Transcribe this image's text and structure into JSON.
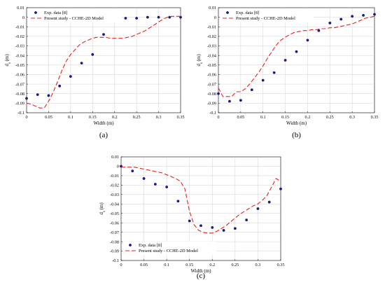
{
  "chart_data": [
    {
      "panel": "(a)",
      "type": "line+scatter",
      "xlabel": "Width (m)",
      "ylabel": "d_s (m)",
      "xlim": [
        0,
        0.35
      ],
      "ylim": [
        -0.1,
        0.01
      ],
      "xticks": [
        "0",
        "0.05",
        "0.1",
        "0.15",
        "0.2",
        "0.25",
        "0.3",
        "0.35"
      ],
      "yticks": [
        "0.01",
        "0",
        "-0.01",
        "-0.02",
        "-0.03",
        "-0.04",
        "-0.05",
        "-0.06",
        "-0.07",
        "-0.08",
        "-0.09",
        "-0.1"
      ],
      "grid": true,
      "legend_position": "top-left",
      "series": [
        {
          "name": "Exp. data [8]",
          "kind": "scatter",
          "x": [
            0,
            0.025,
            0.05,
            0.075,
            0.1,
            0.125,
            0.15,
            0.175,
            0.2,
            0.225,
            0.25,
            0.275,
            0.3,
            0.325,
            0.35
          ],
          "y": [
            -0.085,
            -0.081,
            -0.082,
            -0.072,
            -0.062,
            -0.048,
            -0.039,
            -0.018,
            -0.002,
            -0.001,
            -0.001,
            0.0,
            0.0,
            0.0,
            0.0
          ]
        },
        {
          "name": "Present study -  CCHE-2D Model",
          "kind": "line",
          "x": [
            0,
            0.01,
            0.02,
            0.03,
            0.04,
            0.05,
            0.06,
            0.07,
            0.08,
            0.09,
            0.1,
            0.11,
            0.12,
            0.13,
            0.14,
            0.15,
            0.16,
            0.17,
            0.18,
            0.19,
            0.2,
            0.21,
            0.22,
            0.23,
            0.24,
            0.25,
            0.26,
            0.27,
            0.28,
            0.29,
            0.3,
            0.31,
            0.32,
            0.33,
            0.34,
            0.35
          ],
          "y": [
            -0.09,
            -0.091,
            -0.093,
            -0.095,
            -0.095,
            -0.088,
            -0.079,
            -0.068,
            -0.056,
            -0.046,
            -0.039,
            -0.034,
            -0.029,
            -0.026,
            -0.024,
            -0.022,
            -0.021,
            -0.021,
            -0.021,
            -0.022,
            -0.022,
            -0.022,
            -0.022,
            -0.021,
            -0.02,
            -0.018,
            -0.016,
            -0.014,
            -0.011,
            -0.008,
            -0.005,
            -0.002,
            0.0,
            0.001,
            0.001,
            0.001
          ]
        }
      ]
    },
    {
      "panel": "(b)",
      "type": "line+scatter",
      "xlabel": "Width (m)",
      "ylabel": "d_s (m)",
      "xlim": [
        0,
        0.35
      ],
      "ylim": [
        -0.1,
        0.01
      ],
      "xticks": [
        "0",
        "0.05",
        "0.1",
        "0.15",
        "0.2",
        "0.25",
        "0.3",
        "0.35"
      ],
      "yticks": [
        "0.01",
        "0",
        "-0.01",
        "-0.02",
        "-0.03",
        "-0.04",
        "-0.05",
        "-0.06",
        "-0.07",
        "-0.08",
        "-0.09",
        "-0.1"
      ],
      "grid": true,
      "legend_position": "top-left",
      "series": [
        {
          "name": "Exp. data [8]",
          "kind": "scatter",
          "x": [
            0,
            0.025,
            0.05,
            0.075,
            0.1,
            0.125,
            0.15,
            0.175,
            0.2,
            0.225,
            0.25,
            0.275,
            0.3,
            0.325,
            0.35
          ],
          "y": [
            -0.08,
            -0.088,
            -0.087,
            -0.076,
            -0.066,
            -0.058,
            -0.045,
            -0.036,
            -0.024,
            -0.014,
            -0.006,
            -0.002,
            0.001,
            0.002,
            0.003
          ]
        },
        {
          "name": "Present study -  CCHE-2D Model",
          "kind": "line",
          "x": [
            0,
            0.01,
            0.02,
            0.03,
            0.04,
            0.05,
            0.06,
            0.07,
            0.08,
            0.09,
            0.1,
            0.11,
            0.12,
            0.13,
            0.14,
            0.15,
            0.16,
            0.17,
            0.18,
            0.19,
            0.2,
            0.21,
            0.22,
            0.23,
            0.24,
            0.25,
            0.26,
            0.27,
            0.28,
            0.29,
            0.3,
            0.31,
            0.32,
            0.33,
            0.34,
            0.35
          ],
          "y": [
            -0.074,
            -0.083,
            -0.083,
            -0.083,
            -0.078,
            -0.078,
            -0.075,
            -0.07,
            -0.064,
            -0.058,
            -0.051,
            -0.043,
            -0.036,
            -0.029,
            -0.024,
            -0.021,
            -0.018,
            -0.016,
            -0.015,
            -0.014,
            -0.014,
            -0.013,
            -0.013,
            -0.012,
            -0.012,
            -0.011,
            -0.011,
            -0.01,
            -0.009,
            -0.008,
            -0.007,
            -0.005,
            -0.003,
            -0.001,
            0.0,
            0.001
          ]
        }
      ]
    },
    {
      "panel": "(c)",
      "type": "line+scatter",
      "xlabel": "Width (m)",
      "ylabel": "d_s (m)",
      "xlim": [
        0,
        0.35
      ],
      "ylim": [
        -0.1,
        0.01
      ],
      "xticks": [
        "0",
        "0.05",
        "0.1",
        "0.15",
        "0.2",
        "0.25",
        "0.3",
        "0.35"
      ],
      "yticks": [
        "0.01",
        "0",
        "-0.01",
        "-0.02",
        "-0.03",
        "-0.04",
        "-0.05",
        "-0.06",
        "-0.07",
        "-0.08",
        "-0.09",
        "-0.1"
      ],
      "grid": true,
      "legend_position": "bottom-left",
      "series": [
        {
          "name": "Exp. data [8]",
          "kind": "scatter",
          "x": [
            0,
            0.025,
            0.05,
            0.075,
            0.1,
            0.125,
            0.15,
            0.175,
            0.2,
            0.225,
            0.25,
            0.275,
            0.3,
            0.325,
            0.35
          ],
          "y": [
            0.0,
            -0.005,
            -0.013,
            -0.019,
            -0.022,
            -0.037,
            -0.058,
            -0.063,
            -0.065,
            -0.068,
            -0.066,
            -0.057,
            -0.045,
            -0.038,
            -0.024
          ]
        },
        {
          "name": "Present study -  CCHE-2D Model",
          "kind": "line",
          "x": [
            0,
            0.01,
            0.02,
            0.03,
            0.04,
            0.05,
            0.06,
            0.07,
            0.08,
            0.09,
            0.1,
            0.11,
            0.12,
            0.13,
            0.14,
            0.15,
            0.16,
            0.17,
            0.18,
            0.19,
            0.2,
            0.21,
            0.22,
            0.23,
            0.24,
            0.25,
            0.26,
            0.27,
            0.28,
            0.29,
            0.3,
            0.31,
            0.32,
            0.33,
            0.34,
            0.35
          ],
          "y": [
            -0.001,
            -0.001,
            -0.001,
            -0.001,
            -0.002,
            -0.003,
            -0.004,
            -0.005,
            -0.006,
            -0.007,
            -0.009,
            -0.011,
            -0.013,
            -0.016,
            -0.024,
            -0.048,
            -0.062,
            -0.068,
            -0.07,
            -0.071,
            -0.071,
            -0.069,
            -0.066,
            -0.063,
            -0.059,
            -0.055,
            -0.051,
            -0.048,
            -0.045,
            -0.042,
            -0.04,
            -0.036,
            -0.031,
            -0.022,
            -0.013,
            -0.016
          ]
        }
      ]
    }
  ]
}
